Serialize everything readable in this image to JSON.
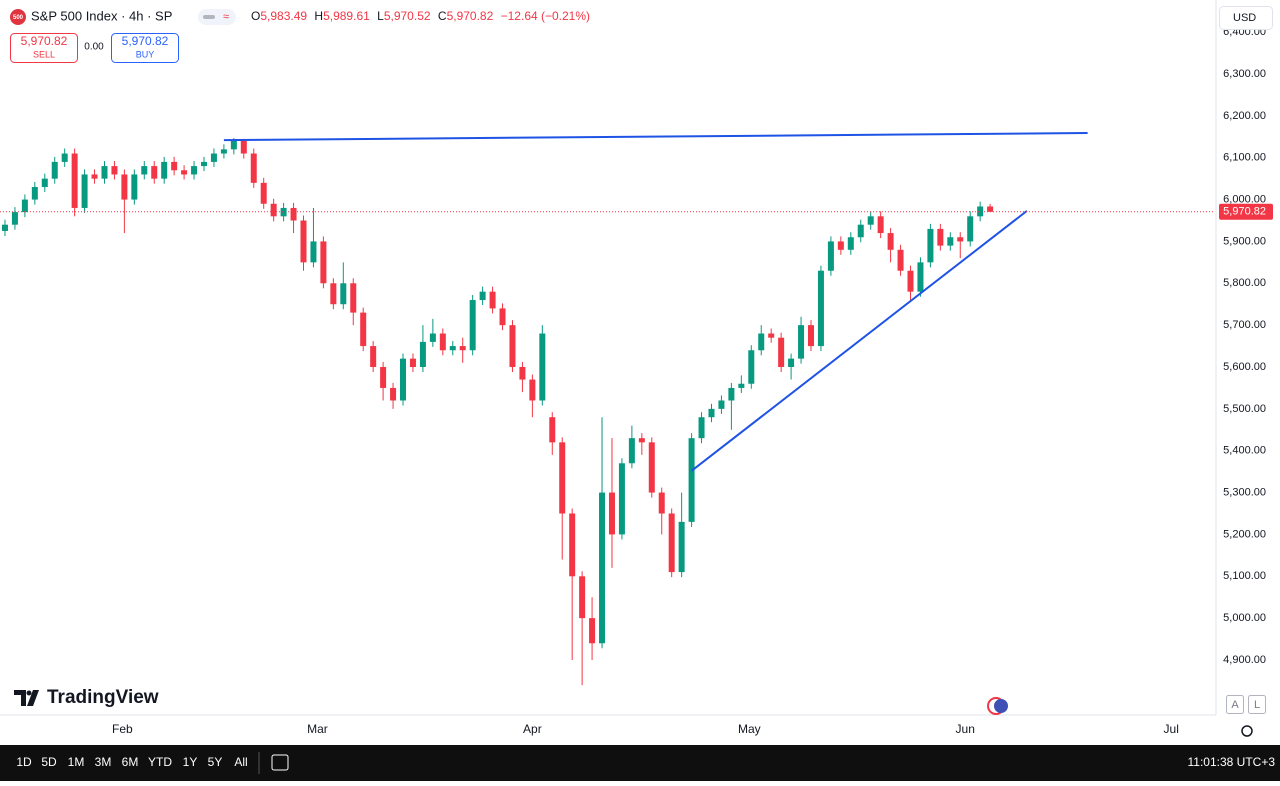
{
  "header": {
    "logo": "500",
    "symbol": "S&P 500 Index · 4h · SP",
    "o_label": "O",
    "o": "5,983.49",
    "h_label": "H",
    "h": "5,989.61",
    "l_label": "L",
    "l": "5,970.52",
    "c_label": "C",
    "c": "5,970.82",
    "change": "−12.64 (−0.21%)"
  },
  "trade": {
    "sell_price": "5,970.82",
    "sell": "SELL",
    "spread": "0.00",
    "buy_price": "5,970.82",
    "buy": "BUY"
  },
  "currency": "USD",
  "brand": "TradingView",
  "scale_buttons": [
    "A",
    "L"
  ],
  "toolbar": {
    "ranges": [
      "1D",
      "5D",
      "1M",
      "3M",
      "6M",
      "YTD",
      "1Y",
      "5Y",
      "All"
    ],
    "clock": "11:01:38 UTC+3"
  },
  "chart_data": {
    "type": "candlestick",
    "up_color": "#089981",
    "down_color": "#f23645",
    "open": [
      5925,
      5940,
      5970,
      6000,
      6030,
      6050,
      6090,
      6110,
      5980,
      6060,
      6050,
      6080,
      6060,
      6000,
      6060,
      6080,
      6050,
      6090,
      6070,
      6060,
      6080,
      6090,
      6110,
      6120,
      6140,
      6110,
      6040,
      5990,
      5960,
      5980,
      5950,
      5850,
      5900,
      5800,
      5750,
      5800,
      5730,
      5650,
      5600,
      5550,
      5520,
      5620,
      5600,
      5660,
      5680,
      5640,
      5650,
      5640,
      5760,
      5780,
      5740,
      5700,
      5600,
      5570,
      5520,
      5480,
      5420,
      5250,
      5100,
      5000,
      4940,
      5300,
      5200,
      5370,
      5430,
      5420,
      5300,
      5250,
      5110,
      5230,
      5430,
      5480,
      5500,
      5520,
      5550,
      5560,
      5640,
      5680,
      5670,
      5600,
      5620,
      5700,
      5650,
      5830,
      5900,
      5880,
      5910,
      5940,
      5960,
      5920,
      5880,
      5830,
      5780,
      5850,
      5930,
      5890,
      5910,
      5900,
      5960,
      5983.49
    ],
    "high": [
      5952,
      5982,
      6012,
      6042,
      6062,
      6102,
      6122,
      6122,
      6072,
      6072,
      6092,
      6092,
      6072,
      6072,
      6092,
      6092,
      6102,
      6102,
      6082,
      6092,
      6102,
      6122,
      6132,
      6147,
      6145,
      6122,
      6052,
      6002,
      5992,
      5992,
      5962,
      5980,
      5912,
      5812,
      5850,
      5812,
      5742,
      5662,
      5612,
      5562,
      5632,
      5632,
      5700,
      5715,
      5692,
      5662,
      5670,
      5772,
      5792,
      5792,
      5752,
      5712,
      5612,
      5582,
      5700,
      5492,
      5432,
      5262,
      5112,
      5050,
      5480,
      5430,
      5382,
      5460,
      5442,
      5432,
      5312,
      5262,
      5300,
      5442,
      5492,
      5512,
      5532,
      5562,
      5580,
      5652,
      5700,
      5692,
      5682,
      5632,
      5720,
      5712,
      5842,
      5912,
      5912,
      5922,
      5952,
      5972,
      5972,
      5932,
      5892,
      5842,
      5862,
      5942,
      5942,
      5922,
      5922,
      5972,
      5995,
      5989.61
    ],
    "low": [
      5913,
      5928,
      5958,
      5988,
      6018,
      6038,
      6078,
      5960,
      5968,
      6038,
      6038,
      6048,
      5920,
      5988,
      6048,
      6038,
      6038,
      6058,
      6048,
      6048,
      6068,
      6078,
      6098,
      6108,
      6098,
      6028,
      5978,
      5948,
      5948,
      5920,
      5830,
      5838,
      5788,
      5738,
      5738,
      5700,
      5638,
      5588,
      5520,
      5500,
      5508,
      5588,
      5588,
      5648,
      5628,
      5628,
      5610,
      5628,
      5748,
      5728,
      5688,
      5588,
      5540,
      5480,
      5508,
      5390,
      5140,
      4900,
      4840,
      4900,
      4928,
      5120,
      5188,
      5358,
      5390,
      5288,
      5200,
      5098,
      5098,
      5218,
      5418,
      5468,
      5488,
      5450,
      5538,
      5548,
      5628,
      5658,
      5588,
      5570,
      5608,
      5638,
      5638,
      5818,
      5868,
      5868,
      5898,
      5928,
      5908,
      5850,
      5818,
      5760,
      5768,
      5838,
      5878,
      5878,
      5860,
      5888,
      5948,
      5970.52
    ],
    "close": [
      5940,
      5970,
      6000,
      6030,
      6050,
      6090,
      6110,
      5980,
      6060,
      6050,
      6080,
      6060,
      6000,
      6060,
      6080,
      6050,
      6090,
      6070,
      6060,
      6080,
      6090,
      6110,
      6120,
      6140,
      6110,
      6040,
      5990,
      5960,
      5980,
      5950,
      5850,
      5900,
      5800,
      5750,
      5800,
      5730,
      5650,
      5600,
      5550,
      5520,
      5620,
      5600,
      5660,
      5680,
      5640,
      5650,
      5640,
      5760,
      5780,
      5740,
      5700,
      5600,
      5570,
      5520,
      5680,
      5420,
      5250,
      5100,
      5000,
      4940,
      5300,
      5200,
      5370,
      5430,
      5420,
      5300,
      5250,
      5110,
      5230,
      5430,
      5480,
      5500,
      5520,
      5550,
      5560,
      5640,
      5680,
      5670,
      5600,
      5620,
      5700,
      5650,
      5830,
      5900,
      5880,
      5910,
      5940,
      5960,
      5920,
      5880,
      5830,
      5780,
      5850,
      5930,
      5890,
      5910,
      5900,
      5960,
      5983.49,
      5970.82
    ],
    "xlim": [
      -0.5,
      121.6
    ],
    "xticks": [
      {
        "value": 11.8,
        "label": "Feb"
      },
      {
        "value": 31.4,
        "label": "Mar"
      },
      {
        "value": 53.0,
        "label": "Apr"
      },
      {
        "value": 74.8,
        "label": "May"
      },
      {
        "value": 96.5,
        "label": "Jun"
      },
      {
        "value": 117.2,
        "label": "Jul"
      }
    ],
    "ylim": [
      4768.6,
      6476.8
    ],
    "yticks": [
      {
        "value": 4900,
        "label": "4,900.00"
      },
      {
        "value": 5000,
        "label": "5,000.00"
      },
      {
        "value": 5100,
        "label": "5,100.00"
      },
      {
        "value": 5200,
        "label": "5,200.00"
      },
      {
        "value": 5300,
        "label": "5,300.00"
      },
      {
        "value": 5400,
        "label": "5,400.00"
      },
      {
        "value": 5500,
        "label": "5,500.00"
      },
      {
        "value": 5600,
        "label": "5,600.00"
      },
      {
        "value": 5700,
        "label": "5,700.00"
      },
      {
        "value": 5800,
        "label": "5,800.00"
      },
      {
        "value": 5900,
        "label": "5,900.00"
      },
      {
        "value": 6000,
        "label": "6,000.00"
      },
      {
        "value": 6100,
        "label": "6,100.00"
      },
      {
        "value": 6200,
        "label": "6,200.00"
      },
      {
        "value": 6300,
        "label": "6,300.00"
      },
      {
        "value": 6400,
        "label": "6,400.00"
      }
    ],
    "last_price": {
      "value": 5970.82,
      "label": "5,970.82"
    },
    "trendline_color": "#1e53e5",
    "trendlines": [
      {
        "x": [
          22.0,
          108.8
        ],
        "y": [
          6142,
          6159
        ]
      },
      {
        "x": [
          69.0,
          102.7
        ],
        "y": [
          5352,
          5973
        ]
      }
    ]
  }
}
